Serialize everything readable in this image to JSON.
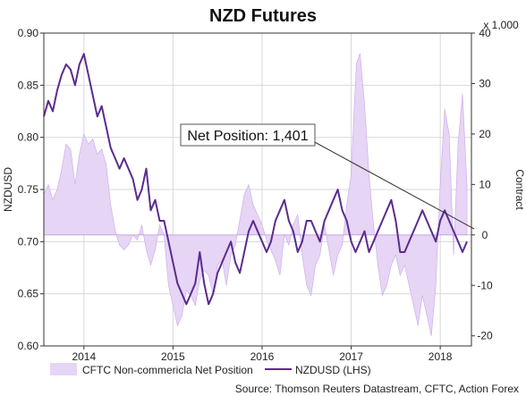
{
  "chart_data": {
    "type": "line",
    "title": "NZD Futures",
    "ylabel_left": "NZDUSD",
    "ylabel_right": "Contract",
    "right_axis_unit": "x 1,000",
    "ylim_left": [
      0.6,
      0.9
    ],
    "ylim_right": [
      -22,
      40
    ],
    "xlim": [
      2013.55,
      2018.35
    ],
    "left_ticks": [
      "0.90",
      "0.85",
      "0.80",
      "0.75",
      "0.70",
      "0.65",
      "0.60"
    ],
    "left_tick_values": [
      0.9,
      0.85,
      0.8,
      0.75,
      0.7,
      0.65,
      0.6
    ],
    "right_ticks": [
      "40",
      "30",
      "20",
      "10",
      "0",
      "-10",
      "-20"
    ],
    "right_tick_values": [
      40,
      30,
      20,
      10,
      0,
      -10,
      -20
    ],
    "x_ticks": [
      "2014",
      "2015",
      "2016",
      "2017",
      "2018"
    ],
    "x_tick_values": [
      2014.0,
      2015.0,
      2016.0,
      2017.0,
      2018.0
    ],
    "grid": true,
    "legend_position": "bottom-left",
    "series": [
      {
        "name": "CFTC Non-commericla Net Position",
        "type": "area",
        "axis": "right",
        "color": "#e6d5f5",
        "x": [
          2013.55,
          2013.6,
          2013.65,
          2013.7,
          2013.75,
          2013.8,
          2013.85,
          2013.9,
          2013.95,
          2014.0,
          2014.05,
          2014.1,
          2014.15,
          2014.2,
          2014.25,
          2014.3,
          2014.35,
          2014.4,
          2014.45,
          2014.5,
          2014.55,
          2014.6,
          2014.65,
          2014.7,
          2014.75,
          2014.8,
          2014.85,
          2014.9,
          2014.95,
          2015.0,
          2015.05,
          2015.1,
          2015.15,
          2015.2,
          2015.25,
          2015.3,
          2015.35,
          2015.4,
          2015.45,
          2015.5,
          2015.55,
          2015.6,
          2015.65,
          2015.7,
          2015.75,
          2015.8,
          2015.85,
          2015.9,
          2015.95,
          2016.0,
          2016.05,
          2016.1,
          2016.15,
          2016.2,
          2016.25,
          2016.3,
          2016.35,
          2016.4,
          2016.45,
          2016.5,
          2016.55,
          2016.6,
          2016.65,
          2016.7,
          2016.75,
          2016.8,
          2016.85,
          2016.9,
          2016.95,
          2017.0,
          2017.03,
          2017.06,
          2017.1,
          2017.15,
          2017.2,
          2017.25,
          2017.3,
          2017.35,
          2017.4,
          2017.45,
          2017.5,
          2017.55,
          2017.6,
          2017.65,
          2017.7,
          2017.75,
          2017.8,
          2017.85,
          2017.9,
          2017.95,
          2018.0,
          2018.05,
          2018.1,
          2018.15,
          2018.2,
          2018.25,
          2018.3
        ],
        "values": [
          8,
          10,
          7,
          9,
          13,
          18,
          17,
          10,
          16,
          20,
          18,
          19,
          16,
          17,
          14,
          6,
          1,
          -2,
          -3,
          -2,
          0,
          -1,
          2,
          -3,
          -6,
          -3,
          2,
          0,
          -10,
          -14,
          -18,
          -16,
          -11,
          -12,
          -14,
          -9,
          -7,
          -8,
          -12,
          -6,
          -5,
          -10,
          -4,
          -2,
          3,
          8,
          10,
          6,
          4,
          2,
          -1,
          -3,
          -5,
          -8,
          0,
          -2,
          2,
          4,
          -4,
          -10,
          -12,
          -6,
          -4,
          2,
          -3,
          -8,
          -4,
          -2,
          6,
          12,
          24,
          34,
          36,
          26,
          12,
          2,
          -6,
          -12,
          -10,
          -6,
          -4,
          -8,
          -6,
          -10,
          -14,
          -18,
          -12,
          -16,
          -20,
          -10,
          10,
          25,
          20,
          -4,
          18,
          28,
          10
        ]
      },
      {
        "name": "NZDUSD (LHS)",
        "type": "line",
        "axis": "left",
        "color": "#5b2c8f",
        "x": [
          2013.55,
          2013.6,
          2013.65,
          2013.7,
          2013.75,
          2013.8,
          2013.85,
          2013.9,
          2013.95,
          2014.0,
          2014.05,
          2014.1,
          2014.15,
          2014.2,
          2014.25,
          2014.3,
          2014.35,
          2014.4,
          2014.45,
          2014.5,
          2014.55,
          2014.6,
          2014.65,
          2014.7,
          2014.75,
          2014.8,
          2014.85,
          2014.9,
          2014.95,
          2015.0,
          2015.05,
          2015.1,
          2015.15,
          2015.2,
          2015.25,
          2015.3,
          2015.35,
          2015.4,
          2015.45,
          2015.5,
          2015.55,
          2015.6,
          2015.65,
          2015.7,
          2015.75,
          2015.8,
          2015.85,
          2015.9,
          2015.95,
          2016.0,
          2016.05,
          2016.1,
          2016.15,
          2016.2,
          2016.25,
          2016.3,
          2016.35,
          2016.4,
          2016.45,
          2016.5,
          2016.55,
          2016.6,
          2016.65,
          2016.7,
          2016.75,
          2016.8,
          2016.85,
          2016.9,
          2016.95,
          2017.0,
          2017.05,
          2017.1,
          2017.15,
          2017.2,
          2017.25,
          2017.3,
          2017.35,
          2017.4,
          2017.45,
          2017.5,
          2017.55,
          2017.6,
          2017.65,
          2017.7,
          2017.75,
          2017.8,
          2017.85,
          2017.9,
          2017.95,
          2018.0,
          2018.05,
          2018.1,
          2018.15,
          2018.2,
          2018.25,
          2018.3
        ],
        "values": [
          0.82,
          0.835,
          0.825,
          0.845,
          0.86,
          0.87,
          0.865,
          0.85,
          0.87,
          0.88,
          0.86,
          0.84,
          0.82,
          0.83,
          0.81,
          0.79,
          0.78,
          0.77,
          0.78,
          0.77,
          0.76,
          0.74,
          0.75,
          0.77,
          0.73,
          0.74,
          0.72,
          0.72,
          0.7,
          0.68,
          0.66,
          0.65,
          0.64,
          0.65,
          0.66,
          0.69,
          0.66,
          0.64,
          0.65,
          0.67,
          0.68,
          0.69,
          0.7,
          0.68,
          0.67,
          0.69,
          0.71,
          0.72,
          0.71,
          0.7,
          0.69,
          0.7,
          0.72,
          0.73,
          0.74,
          0.72,
          0.71,
          0.69,
          0.7,
          0.72,
          0.72,
          0.71,
          0.7,
          0.72,
          0.73,
          0.74,
          0.75,
          0.73,
          0.72,
          0.7,
          0.69,
          0.7,
          0.71,
          0.69,
          0.7,
          0.71,
          0.72,
          0.73,
          0.74,
          0.72,
          0.69,
          0.69,
          0.7,
          0.71,
          0.72,
          0.73,
          0.72,
          0.71,
          0.7,
          0.72,
          0.73,
          0.72,
          0.71,
          0.7,
          0.69,
          0.7
        ]
      }
    ],
    "annotation": {
      "text": "Net Position: 1,401"
    },
    "source": "Source: Thomson Reuters Datastream, CFTC, Action Forex"
  }
}
